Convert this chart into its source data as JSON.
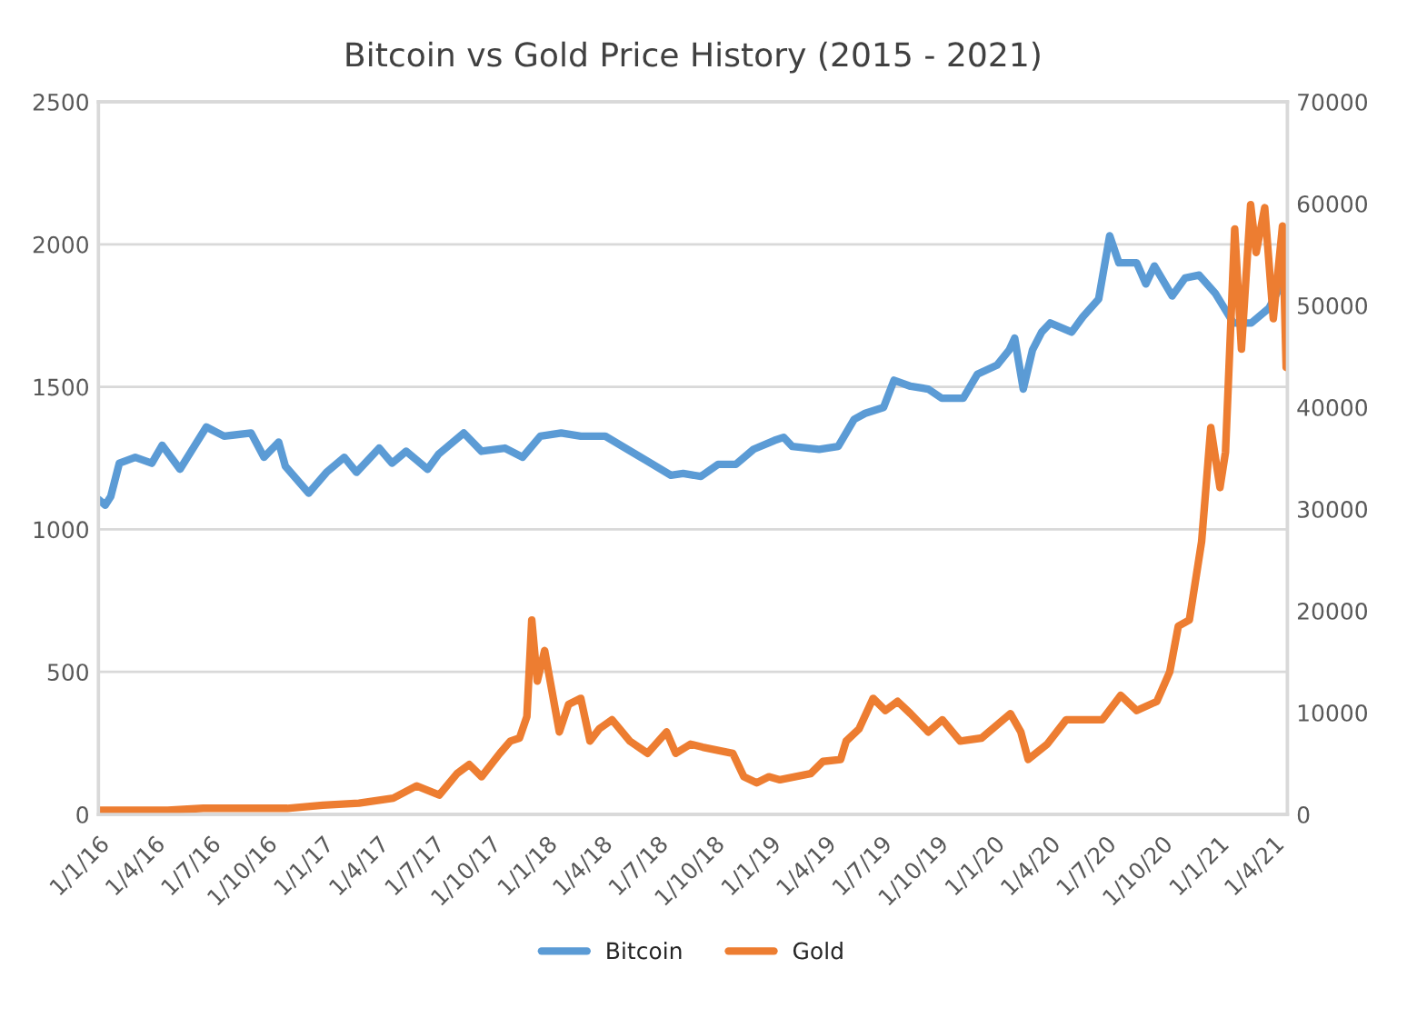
{
  "chart_data": {
    "type": "line",
    "title": "Bitcoin vs Gold Price History (2015 - 2021)",
    "xlim": [
      "2016-01-01",
      "2021-04-24"
    ],
    "xticks": [
      {
        "value": "2016-01-01",
        "label": "1/1/16"
      },
      {
        "value": "2016-04-01",
        "label": "1/4/16"
      },
      {
        "value": "2016-07-01",
        "label": "1/7/16"
      },
      {
        "value": "2016-10-01",
        "label": "1/10/16"
      },
      {
        "value": "2017-01-01",
        "label": "1/1/17"
      },
      {
        "value": "2017-04-01",
        "label": "1/4/17"
      },
      {
        "value": "2017-07-01",
        "label": "1/7/17"
      },
      {
        "value": "2017-10-01",
        "label": "1/10/17"
      },
      {
        "value": "2018-01-01",
        "label": "1/1/18"
      },
      {
        "value": "2018-04-01",
        "label": "1/4/18"
      },
      {
        "value": "2018-07-01",
        "label": "1/7/18"
      },
      {
        "value": "2018-10-01",
        "label": "1/10/18"
      },
      {
        "value": "2019-01-01",
        "label": "1/1/19"
      },
      {
        "value": "2019-04-01",
        "label": "1/4/19"
      },
      {
        "value": "2019-07-01",
        "label": "1/7/19"
      },
      {
        "value": "2019-10-01",
        "label": "1/10/19"
      },
      {
        "value": "2020-01-01",
        "label": "1/1/20"
      },
      {
        "value": "2020-04-01",
        "label": "1/4/20"
      },
      {
        "value": "2020-07-01",
        "label": "1/7/20"
      },
      {
        "value": "2020-10-01",
        "label": "1/10/20"
      },
      {
        "value": "2021-01-01",
        "label": "1/1/21"
      },
      {
        "value": "2021-04-01",
        "label": "1/4/21"
      }
    ],
    "ylim": [
      0,
      2500
    ],
    "yticks": [
      0,
      500,
      1000,
      1500,
      2000,
      2500
    ],
    "y2lim": [
      0,
      70000
    ],
    "y2ticks": [
      0,
      10000,
      20000,
      30000,
      40000,
      50000,
      60000,
      70000
    ],
    "grid": "y",
    "legend": "bottom",
    "line_style": "solid",
    "series": [
      {
        "name": "Bitcoin",
        "color": "#5b9bd5",
        "x": [
          "2016-01-01",
          "2016-01-12",
          "2016-01-21",
          "2016-02-04",
          "2016-03-01",
          "2016-03-28",
          "2016-04-14",
          "2016-05-13",
          "2016-06-25",
          "2016-07-24",
          "2016-09-06",
          "2016-09-27",
          "2016-10-21",
          "2016-11-01",
          "2016-12-09",
          "2017-01-07",
          "2017-02-05",
          "2017-02-25",
          "2017-04-03",
          "2017-04-24",
          "2017-05-17",
          "2017-06-21",
          "2017-07-09",
          "2017-08-19",
          "2017-09-17",
          "2017-10-25",
          "2017-11-23",
          "2017-12-22",
          "2018-01-25",
          "2018-02-26",
          "2018-04-07",
          "2018-06-04",
          "2018-07-23",
          "2018-08-12",
          "2018-09-10",
          "2018-10-08",
          "2018-11-06",
          "2018-12-05",
          "2019-01-08",
          "2019-01-23",
          "2019-02-06",
          "2019-03-22",
          "2019-04-22",
          "2019-05-18",
          "2019-06-05",
          "2019-07-05",
          "2019-07-22",
          "2019-08-18",
          "2019-09-16",
          "2019-10-08",
          "2019-11-12",
          "2019-12-05",
          "2020-01-06",
          "2020-01-26",
          "2020-02-04",
          "2020-02-18",
          "2020-03-04",
          "2020-03-19",
          "2020-04-02",
          "2020-05-07",
          "2020-05-25",
          "2020-06-20",
          "2020-07-08",
          "2020-07-23",
          "2020-08-21",
          "2020-09-05",
          "2020-09-19",
          "2020-10-18",
          "2020-11-08",
          "2020-12-01",
          "2020-12-27",
          "2021-01-26",
          "2021-02-24",
          "2021-03-25",
          "2021-04-12"
        ],
        "values": [
          1105,
          1085,
          1115,
          1232,
          1253,
          1232,
          1295,
          1211,
          1359,
          1327,
          1338,
          1253,
          1306,
          1221,
          1127,
          1200,
          1253,
          1200,
          1285,
          1232,
          1274,
          1211,
          1264,
          1338,
          1274,
          1285,
          1253,
          1327,
          1338,
          1327,
          1327,
          1253,
          1190,
          1196,
          1186,
          1228,
          1228,
          1281,
          1312,
          1323,
          1291,
          1281,
          1291,
          1386,
          1407,
          1428,
          1523,
          1502,
          1492,
          1460,
          1460,
          1544,
          1576,
          1629,
          1671,
          1492,
          1629,
          1692,
          1724,
          1692,
          1745,
          1808,
          2030,
          1935,
          1935,
          1861,
          1924,
          1819,
          1882,
          1892,
          1829,
          1724,
          1724,
          1776,
          1850
        ]
      },
      {
        "name": "Gold",
        "color": "#ed7d31",
        "axis": "y2",
        "x": [
          "2016-01-01",
          "2016-04-23",
          "2016-06-20",
          "2016-11-04",
          "2017-01-01",
          "2017-03-01",
          "2017-04-26",
          "2017-06-03",
          "2017-07-10",
          "2017-08-08",
          "2017-08-28",
          "2017-09-17",
          "2017-10-17",
          "2017-11-03",
          "2017-11-18",
          "2017-11-30",
          "2017-12-08",
          "2017-12-17",
          "2017-12-29",
          "2018-01-22",
          "2018-02-06",
          "2018-02-26",
          "2018-03-13",
          "2018-03-28",
          "2018-04-18",
          "2018-05-17",
          "2018-06-15",
          "2018-07-16",
          "2018-07-31",
          "2018-08-24",
          "2018-09-13",
          "2018-11-01",
          "2018-11-19",
          "2018-12-10",
          "2018-12-30",
          "2019-01-17",
          "2019-03-08",
          "2019-03-28",
          "2019-04-26",
          "2019-05-05",
          "2019-05-26",
          "2019-06-18",
          "2019-07-08",
          "2019-07-28",
          "2019-08-18",
          "2019-09-16",
          "2019-10-09",
          "2019-11-07",
          "2019-12-12",
          "2020-01-28",
          "2020-02-14",
          "2020-02-26",
          "2020-03-28",
          "2020-04-28",
          "2020-05-28",
          "2020-06-26",
          "2020-07-26",
          "2020-08-21",
          "2020-09-23",
          "2020-10-14",
          "2020-10-28",
          "2020-11-15",
          "2020-12-05",
          "2020-12-20",
          "2021-01-04",
          "2021-01-13",
          "2021-01-28",
          "2021-02-08",
          "2021-02-23",
          "2021-03-04",
          "2021-03-18",
          "2021-04-01",
          "2021-04-16",
          "2021-04-22"
        ],
        "values": [
          400,
          400,
          600,
          600,
          900,
          1100,
          1600,
          2800,
          1900,
          4000,
          4900,
          3700,
          6000,
          7200,
          7500,
          9600,
          19100,
          13100,
          16100,
          8100,
          10800,
          11400,
          7200,
          8400,
          9300,
          7200,
          6000,
          8100,
          6000,
          6900,
          6600,
          6000,
          3700,
          3100,
          3700,
          3400,
          4000,
          5200,
          5400,
          7200,
          8400,
          11400,
          10200,
          11100,
          9900,
          8100,
          9300,
          7200,
          7500,
          9900,
          8100,
          5400,
          6900,
          9300,
          9300,
          9300,
          11700,
          10200,
          11100,
          14000,
          18500,
          19100,
          26800,
          38000,
          32100,
          35600,
          57500,
          45700,
          59900,
          55200,
          59600,
          48700,
          57800,
          43900
        ]
      }
    ]
  }
}
